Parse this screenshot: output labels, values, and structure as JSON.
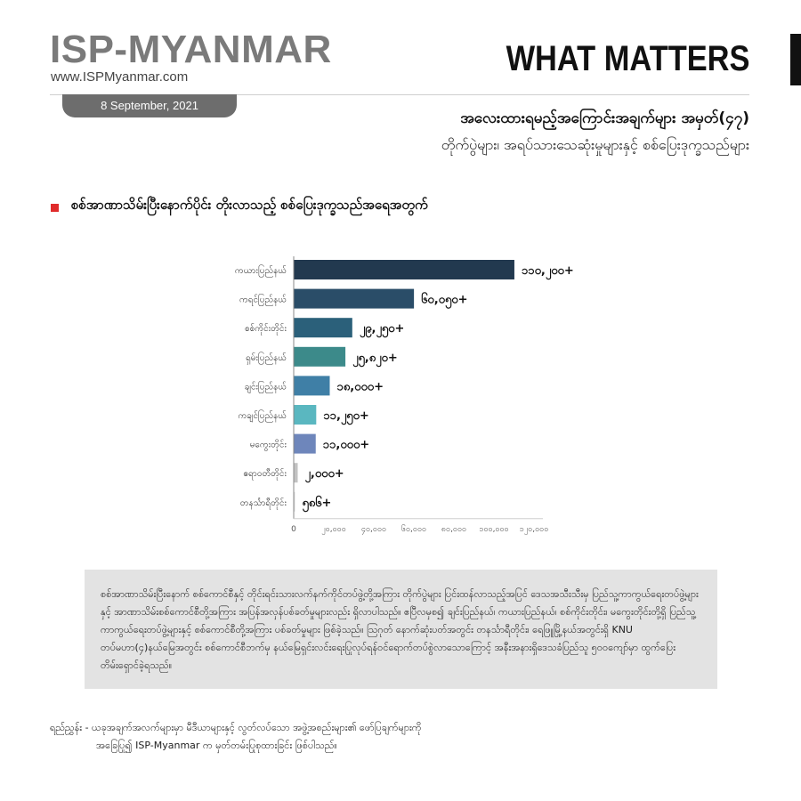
{
  "header": {
    "brand": "ISP-MYANMAR",
    "website": "www.ISPMyanmar.com",
    "series_title": "WHAT MATTERS",
    "date": "8 September, 2021"
  },
  "title": {
    "line1": "အလေးထားရမည့်အကြောင်းအချက်များ အမှတ်(၄၇)",
    "line2": "တိုက်ပွဲများ၊ အရပ်သားသေဆုံးမှုများနှင့် စစ်ပြေးဒုက္ခသည်များ"
  },
  "section_title": "စစ်အာဏာသိမ်းပြီးနောက်ပိုင်း တိုးလာသည့် စစ်ပြေးဒုက္ခသည်အရေအတွက်",
  "chart_data": {
    "type": "bar",
    "orientation": "horizontal",
    "categories": [
      "ကယားပြည်နယ်",
      "ကရင်ပြည်နယ်",
      "စစ်ကိုင်းတိုင်း",
      "ရှမ်းပြည်နယ်",
      "ချင်းပြည်နယ်",
      "ကချင်ပြည်နယ်",
      "မကွေးတိုင်း",
      "ဧရာဝတီတိုင်း",
      "တနင်္သာရီတိုင်း"
    ],
    "values": [
      110200,
      60050,
      29250,
      25820,
      18000,
      11250,
      11000,
      2000,
      586
    ],
    "data_labels": [
      "၁၁၀,၂၀၀+",
      "၆၀,၀၅၀+",
      "၂၉,၂၅၀+",
      "၂၅,၈၂၀+",
      "၁၈,၀၀၀+",
      "၁၁,၂၅၀+",
      "၁၁,၀၀၀+",
      "၂,၀၀၀+",
      "၅၈၆+"
    ],
    "colors": [
      "#22394f",
      "#2a4d68",
      "#2b607a",
      "#3c8a8a",
      "#3f7fa6",
      "#5ab7c0",
      "#6e86bb",
      "#c2c2c2",
      "#dcdcdc"
    ],
    "x_ticks": [
      0,
      20000,
      40000,
      60000,
      80000,
      100000,
      120000
    ],
    "x_tick_labels": [
      "0",
      "၂၀,၀၀၀",
      "၄၀,၀၀၀",
      "၆၀,၀၀၀",
      "၈၀,၀၀၀",
      "၁၀၀,၀၀၀",
      "၁၂၀,၀၀၀"
    ],
    "xlim": [
      0,
      120000
    ],
    "grid": false,
    "legend": "none"
  },
  "note_text": "စစ်အာဏာသိမ်းပြီးနောက် စစ်ကောင်စီနှင့် တိုင်းရင်းသားလက်နက်ကိုင်တပ်ဖွဲ့တို့အကြား တိုက်ပွဲများ ပြင်းထန်လာသည့်အပြင် ဒေသအသီးသီးမှ ပြည်သူ့ကာကွယ်ရေးတပ်ဖွဲ့များနှင့် အာဏာသိမ်းစစ်ကောင်စီတို့အကြား အပြန်အလှန်ပစ်ခတ်မှုများလည်း ရှိလာပါသည်။ ဧပြီလမှစ၍ ချင်းပြည်နယ်၊ ကယားပြည်နယ်၊ စစ်ကိုင်းတိုင်း၊ မကွေးတိုင်းတို့ရှိ ပြည်သူ့ကာကွယ်ရေးတပ်ဖွဲ့များနှင့် စစ်ကောင်စီတို့အကြား ပစ်ခတ်မှုများ ဖြစ်ခဲ့သည်။ ဩဂုတ် နောက်ဆုံးပတ်အတွင်း တနင်္သာရီတိုင်း၊ ရေဖြူမြို့နယ်အတွင်းရှိ KNU တပ်မဟာ(၄)နယ်မြေအတွင်း စစ်ကောင်စီဘက်မှ နယ်မြေရှင်းလင်းရေးပြုလုပ်ရန်ဝင်ရောက်တပ်စွဲလာသောကြောင့် အနီးအနားရှိဒေသခံပြည်သူ ၅၀၀ကျော်မှာ ထွက်ပြေးတိမ်းရှောင်ခဲ့ရသည်။",
  "source": {
    "line1": "ရည်ညွှန်း - ယခုအချက်အလက်များမှာ မီဒီယာများနှင့် လွတ်လပ်သော အဖွဲ့အစည်းများ၏ ဖော်ပြချက်များကို",
    "line2": "အခြေပြု၍ ISP-Myanmar က မှတ်တမ်းပြုစုထားခြင်း ဖြစ်ပါသည်။"
  }
}
